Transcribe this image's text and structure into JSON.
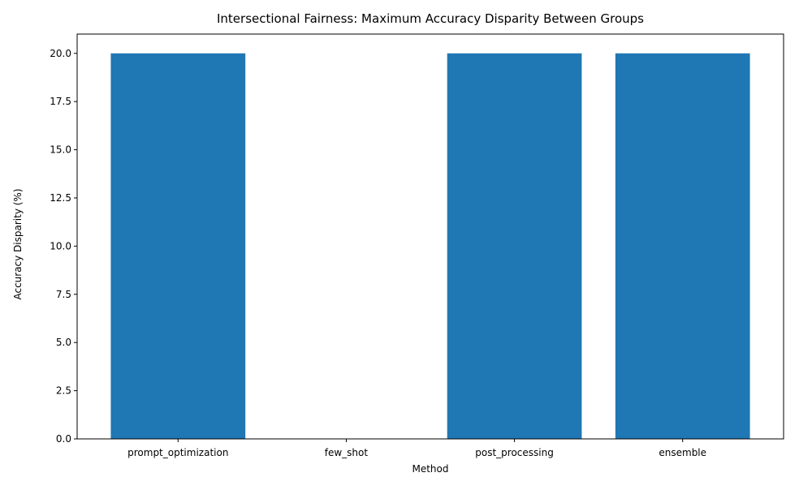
{
  "chart_data": {
    "type": "bar",
    "title": "Intersectional Fairness: Maximum Accuracy Disparity Between Groups",
    "xlabel": "Method",
    "ylabel": "Accuracy Disparity (%)",
    "categories": [
      "prompt_optimization",
      "few_shot",
      "post_processing",
      "ensemble"
    ],
    "values": [
      20.0,
      0.0,
      20.0,
      20.0
    ],
    "ylim": [
      0,
      21
    ],
    "yticks": [
      "0.0",
      "2.5",
      "5.0",
      "7.5",
      "10.0",
      "12.5",
      "15.0",
      "17.5",
      "20.0"
    ],
    "grid": false,
    "legend": "none",
    "bar_color": "#1f77b4"
  }
}
